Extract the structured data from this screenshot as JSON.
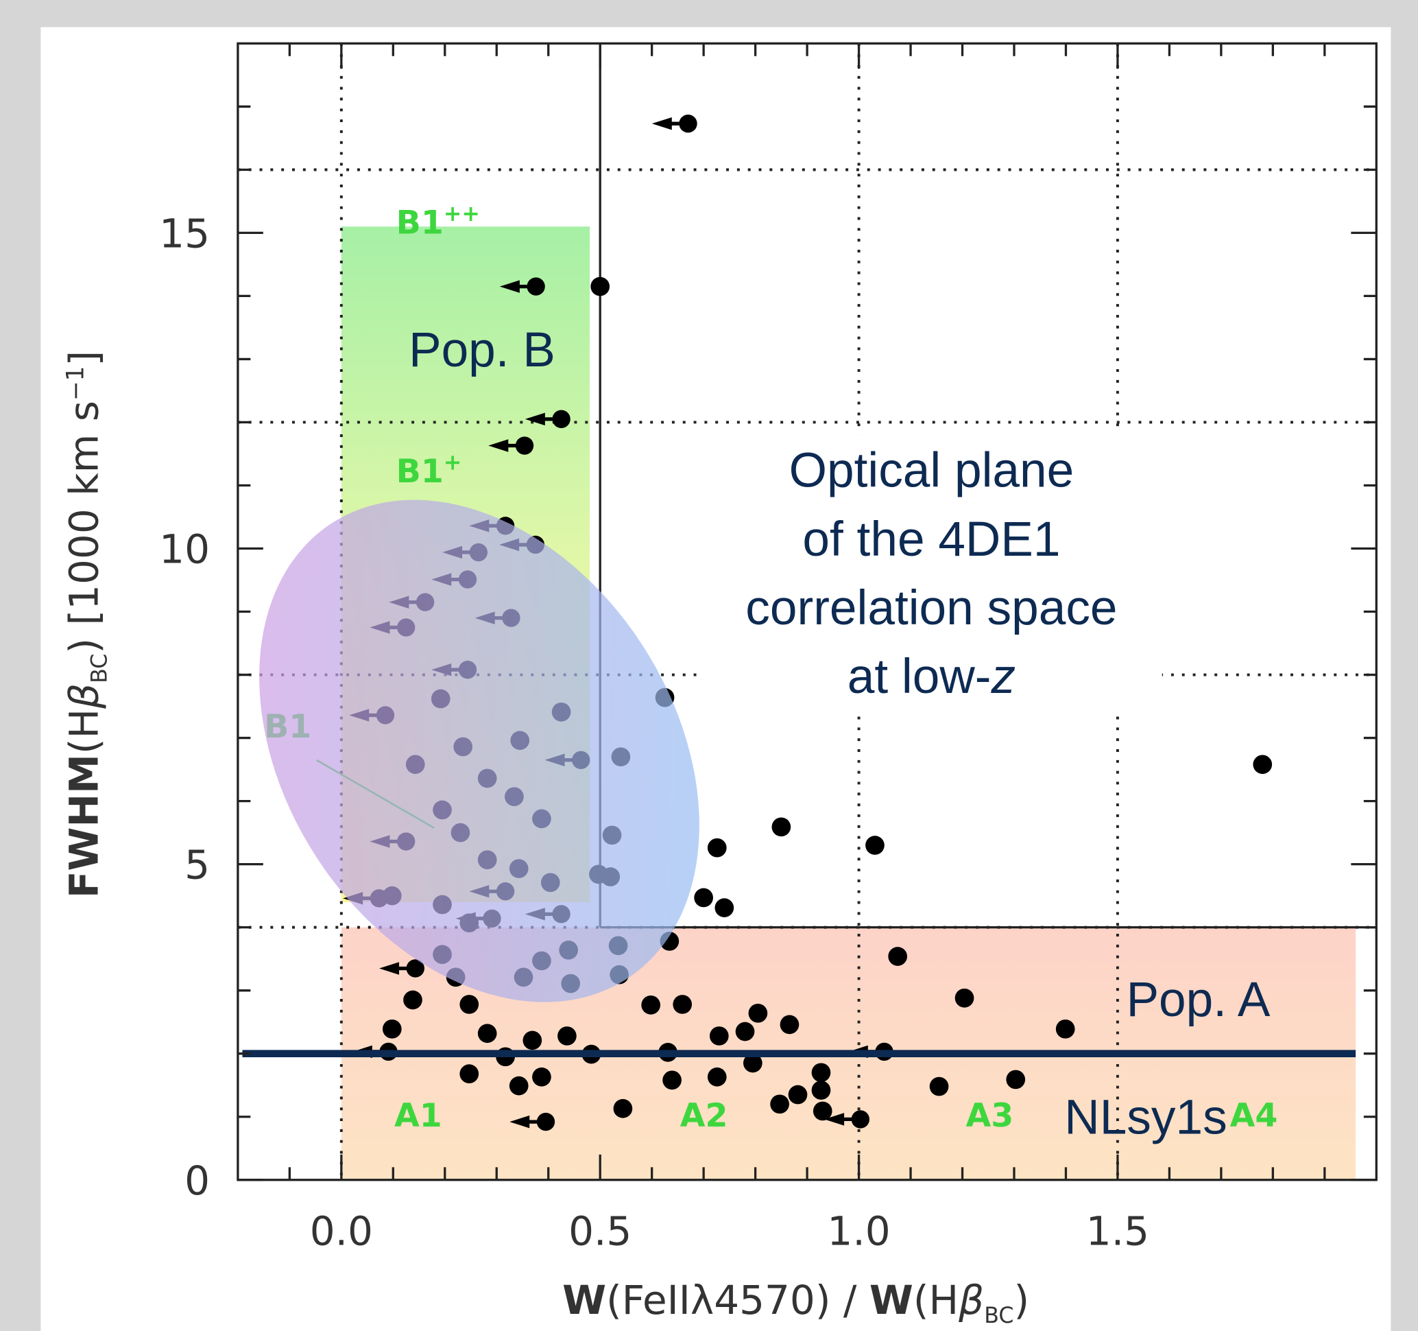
{
  "chart_data": {
    "type": "scatter",
    "x_label": {
      "parts": [
        "W",
        "(FeIIλ4570) / ",
        "W",
        "(H",
        "β",
        "BC",
        ")"
      ]
    },
    "y_label": {
      "parts": [
        "FWHM",
        "(H",
        "β",
        "BC",
        ")  [1000 km s",
        "−1",
        "]"
      ]
    },
    "xlim": [
      -0.2,
      2.0
    ],
    "ylim": [
      0,
      18
    ],
    "xticks": [
      {
        "value": 0,
        "label": "0.0"
      },
      0.5,
      {
        "value": 1,
        "label": "1.0"
      },
      1.5
    ],
    "yticks": [
      0,
      5,
      10,
      15
    ],
    "xminorticks": [
      -0.1,
      0.1,
      0.2,
      0.3,
      0.4,
      0.6,
      0.7,
      0.8,
      0.9,
      1.1,
      1.2,
      1.3,
      1.4,
      1.6,
      1.7,
      1.8,
      1.9
    ],
    "yminorticks": [
      1,
      2,
      3,
      4,
      6,
      7,
      8,
      9,
      11,
      12,
      13,
      14,
      16,
      17
    ],
    "xgrid": [
      0,
      1,
      1.5
    ],
    "ygrid": [
      4,
      8,
      12,
      16
    ],
    "population_boundary": {
      "x": 0.5,
      "y": 4
    },
    "pop_b_box": {
      "xlim": [
        0,
        0.48
      ],
      "ylim": [
        4.4,
        15.1
      ]
    },
    "pop_a_box": {
      "xlim": [
        0,
        1.96
      ],
      "ylim": [
        0,
        4
      ]
    },
    "nlsy1_limit": 2,
    "series": [
      {
        "color": "#000000",
        "marker": "dot",
        "x": [
          0.5,
          0.625,
          0.425,
          0.345,
          0.54,
          1.78,
          0.235,
          0.192,
          0.143,
          0.282,
          0.195,
          0.334,
          0.387,
          0.85,
          0.726,
          1.031,
          0.523,
          0.23,
          0.282,
          0.343,
          0.497,
          0.52,
          0.404,
          0.7,
          0.74,
          0.098,
          0.195,
          0.247,
          1.075,
          0.634,
          0.535,
          0.439,
          0.387,
          0.195,
          0.537,
          0.443,
          0.352,
          0.221,
          1.204,
          0.138,
          0.247,
          0.598,
          0.659,
          0.805,
          0.866,
          1.399,
          0.78,
          0.73,
          0.098,
          0.282,
          0.369,
          0.436,
          0.483,
          0.631,
          0.317,
          0.795,
          0.247,
          0.387,
          0.927,
          1.303,
          0.639,
          0.726,
          1.155,
          0.882,
          0.847,
          0.927,
          0.93,
          0.544,
          0.343
        ],
        "values": [
          14.15,
          7.64,
          7.41,
          6.96,
          6.7,
          6.58,
          6.86,
          7.62,
          6.58,
          6.36,
          5.86,
          6.07,
          5.72,
          5.59,
          5.26,
          5.3,
          5.46,
          5.5,
          5.07,
          4.93,
          4.84,
          4.8,
          4.71,
          4.47,
          4.31,
          4.5,
          4.36,
          4.07,
          3.54,
          3.78,
          3.71,
          3.64,
          3.47,
          3.57,
          3.25,
          3.11,
          3.21,
          3.21,
          2.88,
          2.85,
          2.78,
          2.77,
          2.78,
          2.64,
          2.46,
          2.39,
          2.35,
          2.28,
          2.39,
          2.32,
          2.21,
          2.28,
          1.99,
          2.02,
          1.95,
          1.85,
          1.68,
          1.63,
          1.7,
          1.59,
          1.58,
          1.63,
          1.48,
          1.35,
          1.2,
          1.42,
          1.09,
          1.13,
          1.49
        ]
      },
      {
        "color": "#000000",
        "marker": "left-arrow",
        "x": [
          0.67,
          0.376,
          0.425,
          0.354,
          0.317,
          0.375,
          0.265,
          0.244,
          0.328,
          0.162,
          0.125,
          0.244,
          0.085,
          0.463,
          0.125,
          0.317,
          0.425,
          0.291,
          0.143,
          0.091,
          1.049,
          1.003,
          0.395,
          0.073
        ],
        "values": [
          16.73,
          14.15,
          12.05,
          11.63,
          10.36,
          10.06,
          9.94,
          9.51,
          8.9,
          9.15,
          8.75,
          8.08,
          7.36,
          6.65,
          5.36,
          4.57,
          4.21,
          4.14,
          3.35,
          2.03,
          2.03,
          0.96,
          0.92,
          4.46
        ]
      }
    ],
    "region_labels": [
      {
        "text": "B1",
        "sup": "++"
      },
      {
        "text": "B1",
        "sup": "+"
      },
      "B1",
      "A1",
      "A2",
      "A3",
      "A4"
    ],
    "annotations": {
      "pop_b": "Pop. B",
      "pop_a": "Pop. A",
      "nlsy1": "NLsy1s",
      "note_lines": [
        "Optical plane",
        "of the 4DE1",
        "correlation space",
        "at low-"
      ],
      "note_italic": "z"
    }
  }
}
